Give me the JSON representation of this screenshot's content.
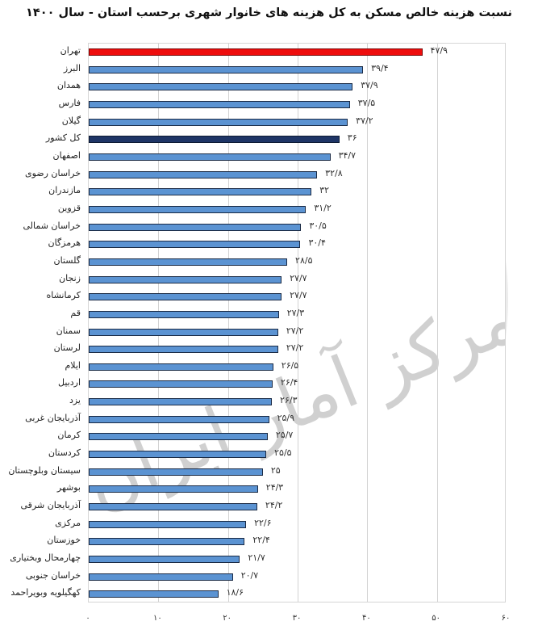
{
  "chart_data": {
    "type": "bar",
    "orientation": "horizontal",
    "title": "نسبت هزینه خالص مسکن به کل هزینه های خانوار شهری برحسب استان - سال ۱۴۰۰",
    "xlabel": "",
    "ylabel": "",
    "xlim": [
      0,
      60
    ],
    "xticks": [
      0,
      10,
      20,
      30,
      40,
      50,
      60
    ],
    "xtick_labels": [
      "۰",
      "۱۰",
      "۲۰",
      "۳۰",
      "۴۰",
      "۵۰",
      "۶۰"
    ],
    "grid": true,
    "legend": false,
    "categories": [
      "تهران",
      "البرز",
      "همدان",
      "فارس",
      "گیلان",
      "کل کشور",
      "اصفهان",
      "خراسان رضوی",
      "مازندران",
      "قزوین",
      "خراسان شمالی",
      "هرمزگان",
      "گلستان",
      "زنجان",
      "کرمانشاه",
      "قم",
      "سمنان",
      "لرستان",
      "ایلام",
      "اردبیل",
      "یزد",
      "آذربایجان غربی",
      "کرمان",
      "کردستان",
      "سیستان وبلوچستان",
      "بوشهر",
      "آذربایجان شرقی",
      "مرکزی",
      "خوزستان",
      "چهارمحال وبختیاری",
      "خراسان جنوبی",
      "کهگیلویه وبویراحمد"
    ],
    "values": [
      47.9,
      39.4,
      37.9,
      37.5,
      37.2,
      36,
      34.7,
      32.8,
      32,
      31.2,
      30.5,
      30.4,
      28.5,
      27.7,
      27.7,
      27.3,
      27.2,
      27.2,
      26.5,
      26.4,
      26.3,
      25.9,
      25.7,
      25.5,
      25,
      24.3,
      24.2,
      22.6,
      22.4,
      21.7,
      20.7,
      18.6
    ],
    "value_labels": [
      "۴۷/۹",
      "۳۹/۴",
      "۳۷/۹",
      "۳۷/۵",
      "۳۷/۲",
      "۳۶",
      "۳۴/۷",
      "۳۲/۸",
      "۳۲",
      "۳۱/۲",
      "۳۰/۵",
      "۳۰/۴",
      "۲۸/۵",
      "۲۷/۷",
      "۲۷/۷",
      "۲۷/۳",
      "۲۷/۲",
      "۲۷/۲",
      "۲۶/۵",
      "۲۶/۴",
      "۲۶/۳",
      "۲۵/۹",
      "۲۵/۷",
      "۲۵/۵",
      "۲۵",
      "۲۴/۳",
      "۲۴/۲",
      "۲۲/۶",
      "۲۲/۴",
      "۲۱/۷",
      "۲۰/۷",
      "۱۸/۶"
    ],
    "highlight": {
      "تهران": "red",
      "کل کشور": "dark"
    }
  },
  "colors": {
    "default_bar": "#5b93d2",
    "highlight_bar": "#ee0d0d",
    "national_bar": "#1e3566"
  },
  "watermark": "مرکز آمار ایران"
}
